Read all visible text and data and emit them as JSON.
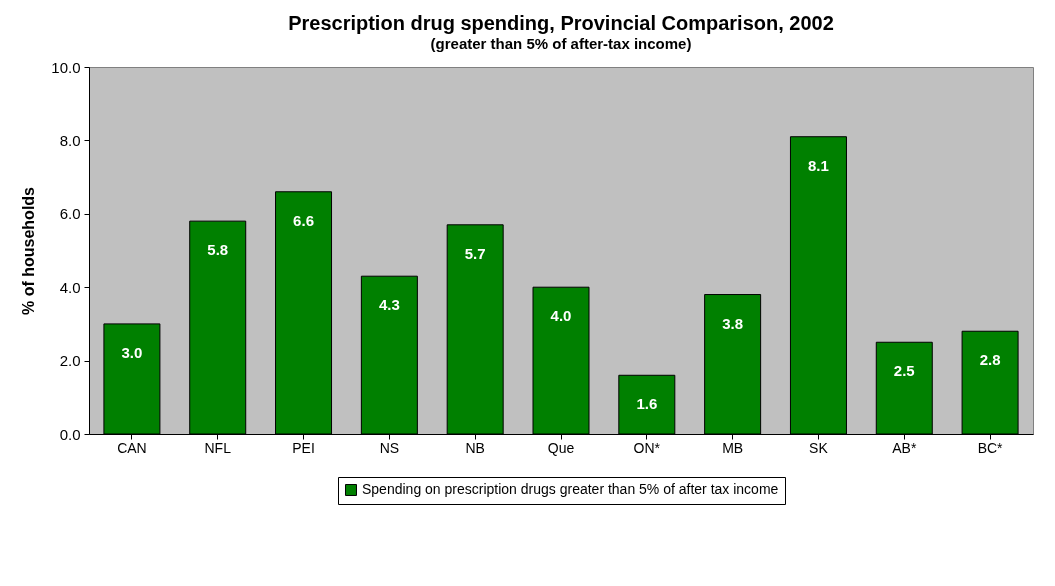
{
  "chart_data": {
    "type": "bar",
    "title": "Prescription drug spending, Provincial Comparison, 2002",
    "subtitle": "(greater than 5% of after-tax income)",
    "ylabel": "% of households",
    "categories": [
      "CAN",
      "NFL",
      "PEI",
      "NS",
      "NB",
      "Que",
      "ON*",
      "MB",
      "SK",
      "AB*",
      "BC*"
    ],
    "series": [
      {
        "name": "Spending on prescription drugs greater than 5% of after tax income",
        "color": "#008000",
        "values": [
          3.0,
          5.8,
          6.6,
          4.3,
          5.7,
          4.0,
          1.6,
          3.8,
          8.1,
          2.5,
          2.8
        ]
      }
    ],
    "ylim": [
      0,
      10
    ],
    "yticks": [
      {
        "value": 0,
        "label": "0.0"
      },
      {
        "value": 2,
        "label": "2.0"
      },
      {
        "value": 4,
        "label": "4.0"
      },
      {
        "value": 6,
        "label": "6.0"
      },
      {
        "value": 8,
        "label": "8.0"
      },
      {
        "value": 10,
        "label": "10.0"
      }
    ],
    "value_labels": [
      "3.0",
      "5.8",
      "6.6",
      "4.3",
      "5.7",
      "4.0",
      "1.6",
      "3.8",
      "8.1",
      "2.5",
      "2.8"
    ],
    "grid": false,
    "legend": "bottom"
  }
}
